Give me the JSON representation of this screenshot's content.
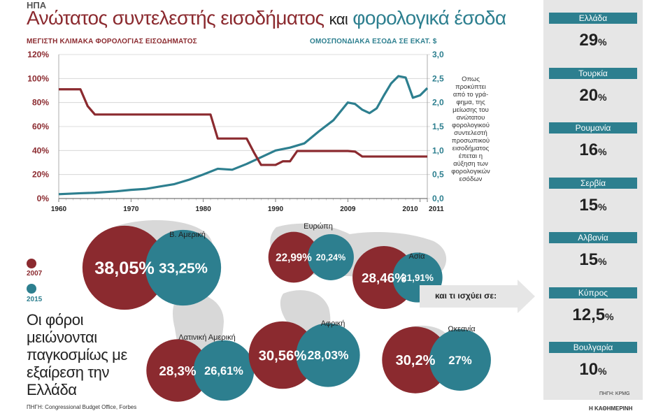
{
  "header": {
    "tag": "ΗΠΑ",
    "title_part1": "Ανώτατος συντελεστής εισοδήματος",
    "title_part2": "και",
    "title_part3": "φορολογικά έσοδα",
    "left_axis_title": "ΜΕΓΙΣΤΗ ΚΛΙΜΑΚΑ ΦΟΡΟΛΟΓΙΑΣ ΕΙΣΟΔΗΜΑΤΟΣ",
    "right_axis_title": "ΟΜΟΣΠΟΝΔΙΑΚΑ ΕΣΟΔΑ ΣΕ ΕΚΑΤ. $"
  },
  "note_lines": [
    "Οπως",
    "προκύπτει",
    "από το γρά-",
    "φημα, της",
    "μείωσης του",
    "ανώτατου",
    "φορολογικού",
    "συντελεστή",
    "προσωπικού",
    "εισοδήματος",
    "έπεται η",
    "αύξηση των",
    "φορολογικών",
    "εσόδων"
  ],
  "chart_data": [
    {
      "type": "line",
      "x_ticks": [
        "1960",
        "1970",
        "1980",
        "1990",
        "2009",
        "2010",
        "2011"
      ],
      "y_left_ticks": [
        "0%",
        "20%",
        "40%",
        "60%",
        "80%",
        "100%",
        "120%"
      ],
      "y_right_ticks": [
        "0,0",
        "0,5",
        "1,0",
        "1,5",
        "2,0",
        "2,5",
        "3,0"
      ],
      "ylim_left": [
        0,
        120
      ],
      "ylim_right": [
        0,
        3.0
      ],
      "colors": {
        "tax_rate": "#8b2a2f",
        "revenue": "#2d7f8f"
      },
      "series": [
        {
          "axis": "left",
          "x": [
            1960,
            1963,
            1964,
            1965,
            1981,
            1982,
            1986,
            1987,
            1988,
            1990,
            1991,
            1992,
            1993,
            2000,
            2001,
            2002,
            2012
          ],
          "values": [
            91,
            91,
            77,
            70,
            70,
            50,
            50,
            38.5,
            28,
            28,
            31,
            31,
            39.6,
            39.6,
            39.1,
            35,
            35
          ]
        },
        {
          "axis": "right",
          "x": [
            1960,
            1963,
            1965,
            1968,
            1970,
            1972,
            1974,
            1976,
            1978,
            1980,
            1982,
            1984,
            1986,
            1988,
            1990,
            1992,
            1994,
            1996,
            1998,
            2000,
            2001,
            2002,
            2003,
            2004,
            2005,
            2006,
            2007,
            2008,
            2009,
            2010,
            2011
          ],
          "values": [
            0.09,
            0.11,
            0.12,
            0.15,
            0.18,
            0.2,
            0.25,
            0.3,
            0.39,
            0.5,
            0.62,
            0.6,
            0.72,
            0.86,
            1.0,
            1.06,
            1.15,
            1.4,
            1.63,
            2.0,
            1.97,
            1.85,
            1.78,
            1.88,
            2.15,
            2.4,
            2.55,
            2.52,
            2.1,
            2.15,
            2.3
          ]
        }
      ]
    },
    {
      "type": "bubble",
      "legend": [
        "2007",
        "2015"
      ],
      "regions": [
        {
          "name": "Β. Αμερική",
          "v2007": 38.05,
          "v2015": 33.25,
          "label2007": "38,05%",
          "label2015": "33,25%"
        },
        {
          "name": "Ευρώπη",
          "v2007": 22.99,
          "v2015": 20.24,
          "label2007": "22,99%",
          "label2015": "20,24%"
        },
        {
          "name": "Ασία",
          "v2007": 28.46,
          "v2015": 21.91,
          "label2007": "28,46%",
          "label2015": "21,91%"
        },
        {
          "name": "Λατινική Αμερική",
          "v2007": 28.3,
          "v2015": 26.61,
          "label2007": "28,3%",
          "label2015": "26,61%"
        },
        {
          "name": "Αφρική",
          "v2007": 30.56,
          "v2015": 28.03,
          "label2007": "30,56%",
          "label2015": "28,03%"
        },
        {
          "name": "Ωκεανία",
          "v2007": 30.2,
          "v2015": 27.0,
          "label2007": "30,2%",
          "label2015": "27%"
        }
      ]
    },
    {
      "type": "table",
      "heading": "και τι ισχύει σε:",
      "rows": [
        {
          "country": "Ελλάδα",
          "rate": "29",
          "unit": "%"
        },
        {
          "country": "Τουρκία",
          "rate": "20",
          "unit": "%"
        },
        {
          "country": "Ρουμανία",
          "rate": "16",
          "unit": "%"
        },
        {
          "country": "Σερβία",
          "rate": "15",
          "unit": "%"
        },
        {
          "country": "Αλβανία",
          "rate": "15",
          "unit": "%"
        },
        {
          "country": "Κύπρος",
          "rate": "12,5",
          "unit": "%"
        },
        {
          "country": "Βουλγαρία",
          "rate": "10",
          "unit": "%"
        }
      ],
      "source": "ΠΗΓΗ: KPMG"
    }
  ],
  "headline": "Οι φόροι μειώνονται παγκοσμίως με εξαίρεση την Ελλάδα",
  "source": "ΠΗΓΗ: Congressional Budget Office, Forbes",
  "publisher": "Η ΚΑΘΗΜΕΡΙΝΗ"
}
